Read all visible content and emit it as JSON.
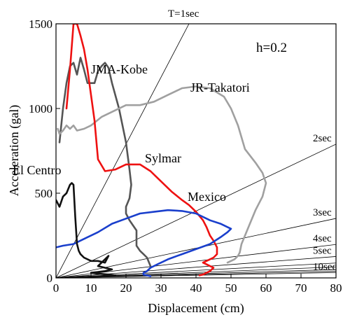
{
  "chart_data": {
    "type": "line",
    "title": "",
    "xlabel": "Displacement (cm)",
    "ylabel": "Acceleration (gal)",
    "xlim": [
      0,
      80
    ],
    "ylim": [
      0,
      1500
    ],
    "x_ticks": [
      "0",
      "10",
      "20",
      "30",
      "40",
      "50",
      "60",
      "70",
      "80"
    ],
    "y_ticks": [
      "0",
      "500",
      "1000",
      "1500"
    ],
    "x_tick_values": [
      0,
      10,
      20,
      30,
      40,
      50,
      60,
      70,
      80
    ],
    "y_tick_values": [
      0,
      500,
      1000,
      1500
    ],
    "grid": false,
    "damping_label": "h=0.2",
    "period_lines": [
      {
        "label": "T=1sec",
        "period": 1
      },
      {
        "label": "2sec",
        "period": 2
      },
      {
        "label": "3sec",
        "period": 3
      },
      {
        "label": "4sec",
        "period": 4
      },
      {
        "label": "5sec",
        "period": 5
      },
      {
        "label": "10sec",
        "period": 10
      }
    ],
    "extra_period_lines": [
      6,
      7,
      8,
      9
    ],
    "series": [
      {
        "name": "JMA-Kobe",
        "color": "#555555",
        "x": [
          1,
          2,
          3,
          4,
          5,
          6,
          7,
          8,
          9,
          10,
          11,
          12,
          13,
          14,
          15,
          16,
          18,
          20,
          21,
          21.5,
          21,
          20,
          20,
          21,
          22,
          23,
          23,
          23,
          24,
          25,
          26,
          27
        ],
        "y": [
          800,
          1000,
          1150,
          1250,
          1270,
          1200,
          1300,
          1230,
          1150,
          1150,
          1150,
          1220,
          1250,
          1270,
          1240,
          1150,
          1000,
          800,
          640,
          550,
          470,
          420,
          380,
          340,
          310,
          280,
          240,
          190,
          160,
          140,
          120,
          70
        ]
      },
      {
        "name": "JR-Takatori",
        "color": "#a0a0a0",
        "x": [
          0.5,
          1,
          2,
          3,
          4,
          5,
          6,
          8,
          10,
          13,
          16,
          20,
          24,
          28,
          32,
          36,
          40,
          44,
          48,
          50,
          52,
          54,
          57,
          59,
          60,
          59,
          57,
          55,
          53,
          52.5,
          52,
          51,
          50,
          49
        ],
        "y": [
          880,
          850,
          870,
          900,
          880,
          900,
          870,
          880,
          900,
          950,
          980,
          1020,
          1020,
          1040,
          1080,
          1120,
          1130,
          1120,
          1070,
          1000,
          900,
          760,
          680,
          620,
          560,
          480,
          400,
          300,
          200,
          150,
          130,
          110,
          100,
          90
        ]
      },
      {
        "name": "Sylmar",
        "color": "#ee1111",
        "x": [
          3,
          4,
          5,
          6,
          7,
          8,
          9,
          10,
          11,
          12,
          14,
          17,
          20,
          24,
          27,
          30,
          33,
          36,
          38,
          40,
          42,
          43,
          44,
          45,
          46,
          46,
          45,
          44,
          43,
          42,
          43,
          44,
          45,
          44,
          43,
          42,
          41
        ],
        "y": [
          1000,
          1230,
          1500,
          1500,
          1430,
          1350,
          1230,
          1080,
          930,
          700,
          630,
          640,
          670,
          670,
          630,
          570,
          510,
          460,
          430,
          390,
          340,
          300,
          250,
          220,
          180,
          140,
          120,
          110,
          100,
          90,
          80,
          70,
          60,
          40,
          30,
          20,
          15
        ]
      },
      {
        "name": "Mexico",
        "color": "#1a3fcc",
        "x": [
          0,
          2,
          5,
          8,
          12,
          16,
          20,
          24,
          28,
          32,
          36,
          40,
          44,
          47,
          49,
          50,
          49,
          47,
          44,
          40,
          36,
          32,
          29,
          27,
          26,
          25,
          25,
          26,
          27
        ],
        "y": [
          180,
          190,
          200,
          230,
          270,
          320,
          350,
          380,
          390,
          400,
          395,
          380,
          340,
          320,
          300,
          290,
          270,
          240,
          200,
          170,
          140,
          110,
          80,
          60,
          40,
          30,
          20,
          15,
          10
        ]
      },
      {
        "name": "El Centro",
        "color": "#111111",
        "x": [
          0,
          1,
          2,
          3,
          4,
          4.5,
          5,
          5.5,
          6,
          6.5,
          7,
          8,
          10,
          12,
          14,
          15,
          14,
          12,
          14,
          16,
          14,
          12,
          10,
          12,
          15,
          17,
          14,
          11,
          9,
          6,
          4
        ],
        "y": [
          460,
          420,
          480,
          500,
          550,
          560,
          550,
          360,
          200,
          160,
          140,
          120,
          100,
          100,
          90,
          130,
          110,
          70,
          60,
          50,
          40,
          35,
          30,
          25,
          20,
          15,
          10,
          8,
          5,
          3,
          0
        ]
      }
    ]
  }
}
